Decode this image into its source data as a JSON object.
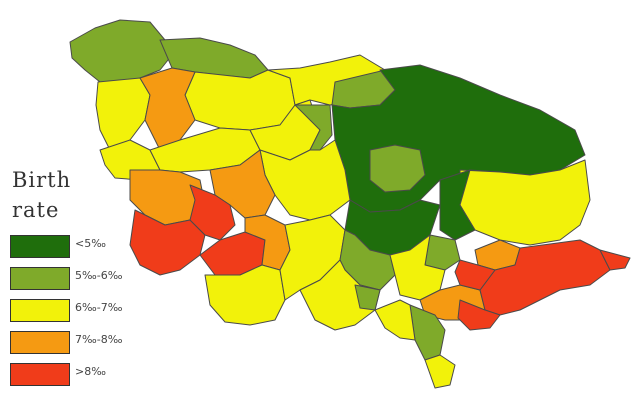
{
  "legend": {
    "title_line1": "Birth",
    "title_line2": "rate",
    "items": [
      {
        "label": "<5‰",
        "color": "#1f6e0c"
      },
      {
        "label": "5‰-6‰",
        "color": "#7faa2a"
      },
      {
        "label": "6‰-7‰",
        "color": "#f2f20a"
      },
      {
        "label": "7‰-8‰",
        "color": "#f59a12"
      },
      {
        "label": ">8‰",
        "color": "#f03c1a"
      }
    ]
  }
}
